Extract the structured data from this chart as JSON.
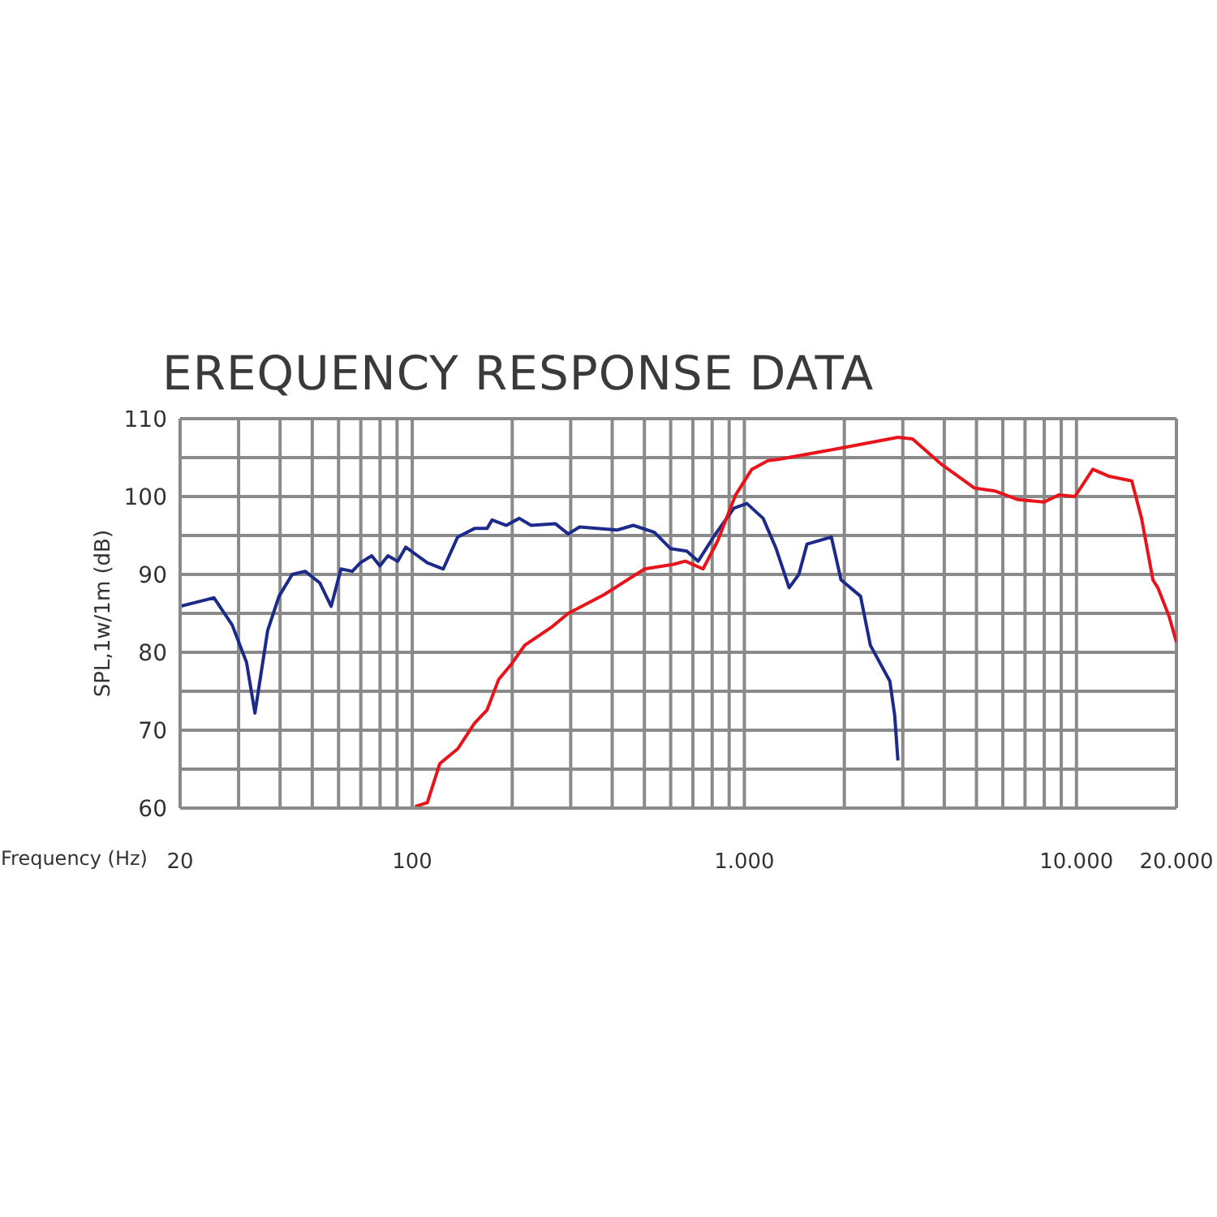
{
  "chart_data": {
    "type": "line",
    "title": "EREQUENCY RESPONSE DATA",
    "xlabel": "Frequency (Hz)",
    "ylabel": "SPL,1w/1m (dB)",
    "log": "x",
    "grid": true,
    "xlim": [
      20,
      20000
    ],
    "xticks": [
      20,
      {
        "value": 30,
        "label": null
      },
      {
        "value": 40,
        "label": null
      },
      {
        "value": 50,
        "label": null
      },
      {
        "value": 60,
        "label": null
      },
      {
        "value": 70,
        "label": null
      },
      {
        "value": 80,
        "label": null
      },
      {
        "value": 90,
        "label": null
      },
      100,
      {
        "value": 200,
        "label": null
      },
      {
        "value": 300,
        "label": null
      },
      {
        "value": 400,
        "label": null
      },
      {
        "value": 500,
        "label": null
      },
      {
        "value": 600,
        "label": null
      },
      {
        "value": 700,
        "label": null
      },
      {
        "value": 800,
        "label": null
      },
      {
        "value": 900,
        "label": null
      },
      {
        "value": 1000,
        "label": "1.000"
      },
      {
        "value": 2000,
        "label": null
      },
      {
        "value": 3000,
        "label": null
      },
      {
        "value": 4000,
        "label": null
      },
      {
        "value": 5000,
        "label": null
      },
      {
        "value": 6000,
        "label": null
      },
      {
        "value": 7000,
        "label": null
      },
      {
        "value": 8000,
        "label": null
      },
      {
        "value": 9000,
        "label": null
      },
      {
        "value": 10000,
        "label": "10.000"
      },
      {
        "value": 20000,
        "label": "20.000"
      }
    ],
    "ylim": [
      60,
      110
    ],
    "yticks": [
      60,
      {
        "value": 65,
        "label": null
      },
      70,
      {
        "value": 75,
        "label": null
      },
      80,
      {
        "value": 85,
        "label": null
      },
      90,
      {
        "value": 95,
        "label": null
      },
      100,
      {
        "value": 105,
        "label": null
      },
      110
    ],
    "series": [
      {
        "color": "#1c2a8a",
        "x": [
          20,
          25.3,
          28.7,
          31.7,
          33.6,
          36.7,
          39.7,
          43.5,
          47.6,
          52.7,
          57,
          61,
          66,
          69.8,
          75.5,
          79.9,
          84.5,
          90.4,
          95.6,
          111,
          124,
          137,
          154,
          168,
          174,
          192,
          210,
          228,
          270,
          295,
          319,
          414,
          463,
          536,
          600,
          671,
          726,
          813,
          930,
          1018,
          1139,
          1247,
          1364,
          1459,
          1544,
          1828,
          1955,
          2238,
          2396,
          2742,
          2836,
          2900
        ],
        "values": [
          85.9,
          87,
          83.5,
          78.7,
          72.2,
          82.8,
          87.2,
          90,
          90.4,
          88.9,
          85.9,
          90.7,
          90.4,
          91.5,
          92.4,
          91.1,
          92.4,
          91.7,
          93.5,
          91.5,
          90.7,
          94.8,
          95.9,
          95.9,
          97,
          96.3,
          97.2,
          96.3,
          96.5,
          95.2,
          96.1,
          95.7,
          96.3,
          95.4,
          93.3,
          93,
          91.7,
          95,
          98.5,
          99.1,
          97.2,
          93.3,
          88.3,
          90,
          93.9,
          94.8,
          89.3,
          87.2,
          80.9,
          76.3,
          71.9,
          66.1
        ]
      },
      {
        "color": "#e8141c",
        "x": [
          102,
          111,
          121,
          137,
          154,
          168,
          182,
          199,
          218,
          264,
          295,
          378,
          501,
          613,
          664,
          751,
          831,
          941,
          1053,
          1178,
          1275,
          2000,
          2900,
          3210,
          3932,
          4924,
          5700,
          6672,
          7990,
          8842,
          9896,
          11200,
          12536,
          14674,
          15702,
          16992,
          17578,
          19012,
          20000
        ],
        "values": [
          60.2,
          60.7,
          65.7,
          67.6,
          70.9,
          72.6,
          76.5,
          78.5,
          80.9,
          83.3,
          85,
          87.4,
          90.7,
          91.3,
          91.7,
          90.7,
          94.3,
          100.2,
          103.5,
          104.6,
          104.8,
          106.3,
          107.6,
          107.4,
          104.1,
          101.1,
          100.7,
          99.6,
          99.3,
          100.2,
          100,
          103.5,
          102.6,
          102,
          97.2,
          89.3,
          88.3,
          84.6,
          81.3
        ]
      }
    ]
  }
}
